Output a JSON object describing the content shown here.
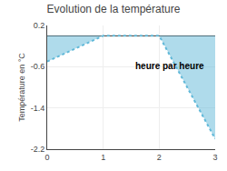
{
  "chart_data": {
    "type": "area",
    "title": "Evolution de la température",
    "xlabel": "heure par heure",
    "ylabel": "Température en °C",
    "x": [
      0,
      1,
      2,
      3
    ],
    "values": [
      -0.5,
      0.0,
      0.0,
      -2.0
    ],
    "color": "#60b8d8",
    "line_style": "dotted",
    "xlim": [
      0,
      3
    ],
    "ylim": [
      -2.2,
      0.2
    ],
    "xticks": [
      0,
      1,
      2,
      3
    ],
    "yticks": [
      0.2,
      -0.6,
      -1.4,
      -2.2
    ],
    "grid": true
  }
}
